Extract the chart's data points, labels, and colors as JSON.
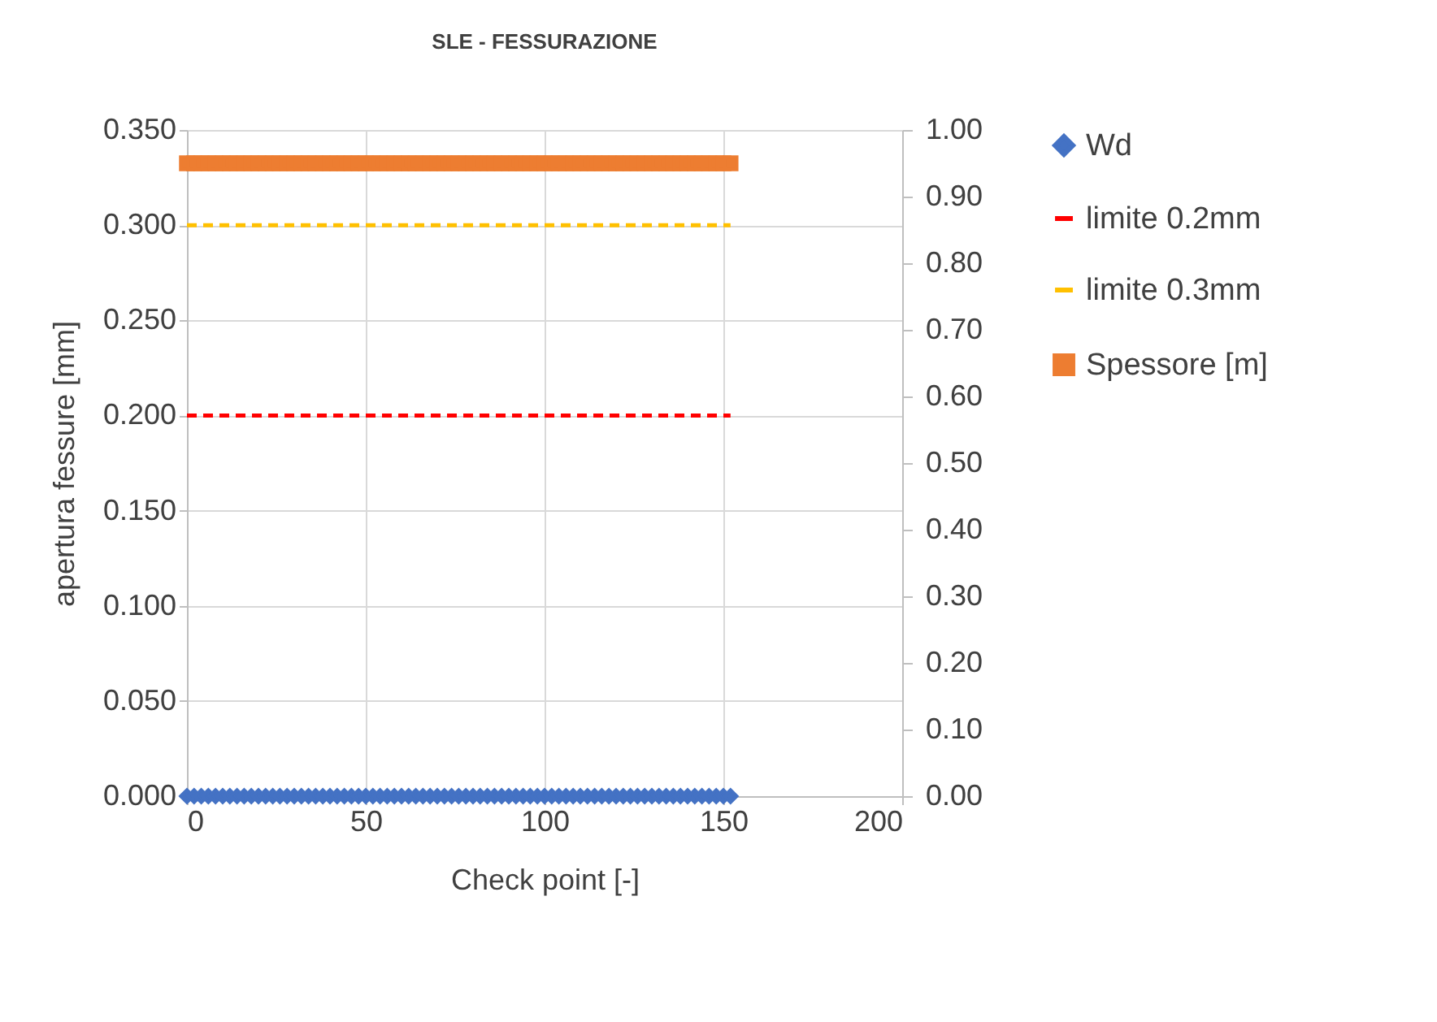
{
  "chart_data": {
    "type": "scatter",
    "title": "SLE - FESSURAZIONE",
    "xlabel": "Check point [-]",
    "ylabel": "apertura fessure [mm]",
    "x": [
      0,
      2,
      4,
      6,
      8,
      10,
      12,
      14,
      16,
      18,
      20,
      22,
      24,
      26,
      28,
      30,
      32,
      34,
      36,
      38,
      40,
      42,
      44,
      46,
      48,
      50,
      52,
      54,
      56,
      58,
      60,
      62,
      64,
      66,
      68,
      70,
      72,
      74,
      76,
      78,
      80,
      82,
      84,
      86,
      88,
      90,
      92,
      94,
      96,
      98,
      100,
      102,
      104,
      106,
      108,
      110,
      112,
      114,
      116,
      118,
      120,
      122,
      124,
      126,
      128,
      130,
      132,
      134,
      136,
      138,
      140,
      142,
      144,
      146,
      148,
      150,
      152
    ],
    "series": [
      {
        "name": "Wd",
        "type": "scatter",
        "marker": "diamond",
        "color": "#4472c4",
        "values": [
          0,
          0,
          0,
          0,
          0,
          0,
          0,
          0,
          0,
          0,
          0,
          0,
          0,
          0,
          0,
          0,
          0,
          0,
          0,
          0,
          0,
          0,
          0,
          0,
          0,
          0,
          0,
          0,
          0,
          0,
          0,
          0,
          0,
          0,
          0,
          0,
          0,
          0,
          0,
          0,
          0,
          0,
          0,
          0,
          0,
          0,
          0,
          0,
          0,
          0,
          0,
          0,
          0,
          0,
          0,
          0,
          0,
          0,
          0,
          0,
          0,
          0,
          0,
          0,
          0,
          0,
          0,
          0,
          0,
          0,
          0,
          0,
          0,
          0,
          0,
          0,
          0
        ]
      },
      {
        "name": "limite 0.2mm",
        "type": "line",
        "line_style": "dashed",
        "color": "#ff0000",
        "values": [
          0.2,
          0.2,
          0.2,
          0.2,
          0.2,
          0.2,
          0.2,
          0.2,
          0.2,
          0.2,
          0.2,
          0.2,
          0.2,
          0.2,
          0.2,
          0.2,
          0.2,
          0.2,
          0.2,
          0.2,
          0.2,
          0.2,
          0.2,
          0.2,
          0.2,
          0.2,
          0.2,
          0.2,
          0.2,
          0.2,
          0.2,
          0.2,
          0.2,
          0.2,
          0.2,
          0.2,
          0.2,
          0.2,
          0.2,
          0.2,
          0.2,
          0.2,
          0.2,
          0.2,
          0.2,
          0.2,
          0.2,
          0.2,
          0.2,
          0.2,
          0.2,
          0.2,
          0.2,
          0.2,
          0.2,
          0.2,
          0.2,
          0.2,
          0.2,
          0.2,
          0.2,
          0.2,
          0.2,
          0.2,
          0.2,
          0.2,
          0.2,
          0.2,
          0.2,
          0.2,
          0.2,
          0.2,
          0.2,
          0.2,
          0.2,
          0.2,
          0.2
        ]
      },
      {
        "name": "limite 0.3mm",
        "type": "line",
        "line_style": "dashed",
        "color": "#ffc000",
        "values": [
          0.3,
          0.3,
          0.3,
          0.3,
          0.3,
          0.3,
          0.3,
          0.3,
          0.3,
          0.3,
          0.3,
          0.3,
          0.3,
          0.3,
          0.3,
          0.3,
          0.3,
          0.3,
          0.3,
          0.3,
          0.3,
          0.3,
          0.3,
          0.3,
          0.3,
          0.3,
          0.3,
          0.3,
          0.3,
          0.3,
          0.3,
          0.3,
          0.3,
          0.3,
          0.3,
          0.3,
          0.3,
          0.3,
          0.3,
          0.3,
          0.3,
          0.3,
          0.3,
          0.3,
          0.3,
          0.3,
          0.3,
          0.3,
          0.3,
          0.3,
          0.3,
          0.3,
          0.3,
          0.3,
          0.3,
          0.3,
          0.3,
          0.3,
          0.3,
          0.3,
          0.3,
          0.3,
          0.3,
          0.3,
          0.3,
          0.3,
          0.3,
          0.3,
          0.3,
          0.3,
          0.3,
          0.3,
          0.3,
          0.3,
          0.3,
          0.3,
          0.3
        ]
      },
      {
        "name": "Spessore [m]",
        "type": "scatter",
        "marker": "square",
        "axis": "y2",
        "color": "#ed7d31",
        "values": [
          0.95,
          0.95,
          0.95,
          0.95,
          0.95,
          0.95,
          0.95,
          0.95,
          0.95,
          0.95,
          0.95,
          0.95,
          0.95,
          0.95,
          0.95,
          0.95,
          0.95,
          0.95,
          0.95,
          0.95,
          0.95,
          0.95,
          0.95,
          0.95,
          0.95,
          0.95,
          0.95,
          0.95,
          0.95,
          0.95,
          0.95,
          0.95,
          0.95,
          0.95,
          0.95,
          0.95,
          0.95,
          0.95,
          0.95,
          0.95,
          0.95,
          0.95,
          0.95,
          0.95,
          0.95,
          0.95,
          0.95,
          0.95,
          0.95,
          0.95,
          0.95,
          0.95,
          0.95,
          0.95,
          0.95,
          0.95,
          0.95,
          0.95,
          0.95,
          0.95,
          0.95,
          0.95,
          0.95,
          0.95,
          0.95,
          0.95,
          0.95,
          0.95,
          0.95,
          0.95,
          0.95,
          0.95,
          0.95,
          0.95,
          0.95,
          0.95,
          0.95
        ]
      }
    ],
    "xlim": [
      0,
      200
    ],
    "xticks": [
      0,
      50,
      100,
      150,
      200
    ],
    "ylim": [
      0,
      0.35
    ],
    "yticks": [
      {
        "value": 0,
        "label": "0.000"
      },
      {
        "value": 0.05,
        "label": "0.050"
      },
      {
        "value": 0.1,
        "label": "0.100"
      },
      {
        "value": 0.15,
        "label": "0.150"
      },
      {
        "value": 0.2,
        "label": "0.200"
      },
      {
        "value": 0.25,
        "label": "0.250"
      },
      {
        "value": 0.3,
        "label": "0.300"
      },
      {
        "value": 0.35,
        "label": "0.350"
      }
    ],
    "y2lim": [
      0,
      1
    ],
    "y2ticks": [
      {
        "value": 0,
        "label": "0.00"
      },
      {
        "value": 0.1,
        "label": "0.10"
      },
      {
        "value": 0.2,
        "label": "0.20"
      },
      {
        "value": 0.3,
        "label": "0.30"
      },
      {
        "value": 0.4,
        "label": "0.40"
      },
      {
        "value": 0.5,
        "label": "0.50"
      },
      {
        "value": 0.6,
        "label": "0.60"
      },
      {
        "value": 0.7,
        "label": "0.70"
      },
      {
        "value": 0.8,
        "label": "0.80"
      },
      {
        "value": 0.9,
        "label": "0.90"
      },
      {
        "value": 1,
        "label": "1.00"
      }
    ],
    "grid": true,
    "legend": "right"
  }
}
